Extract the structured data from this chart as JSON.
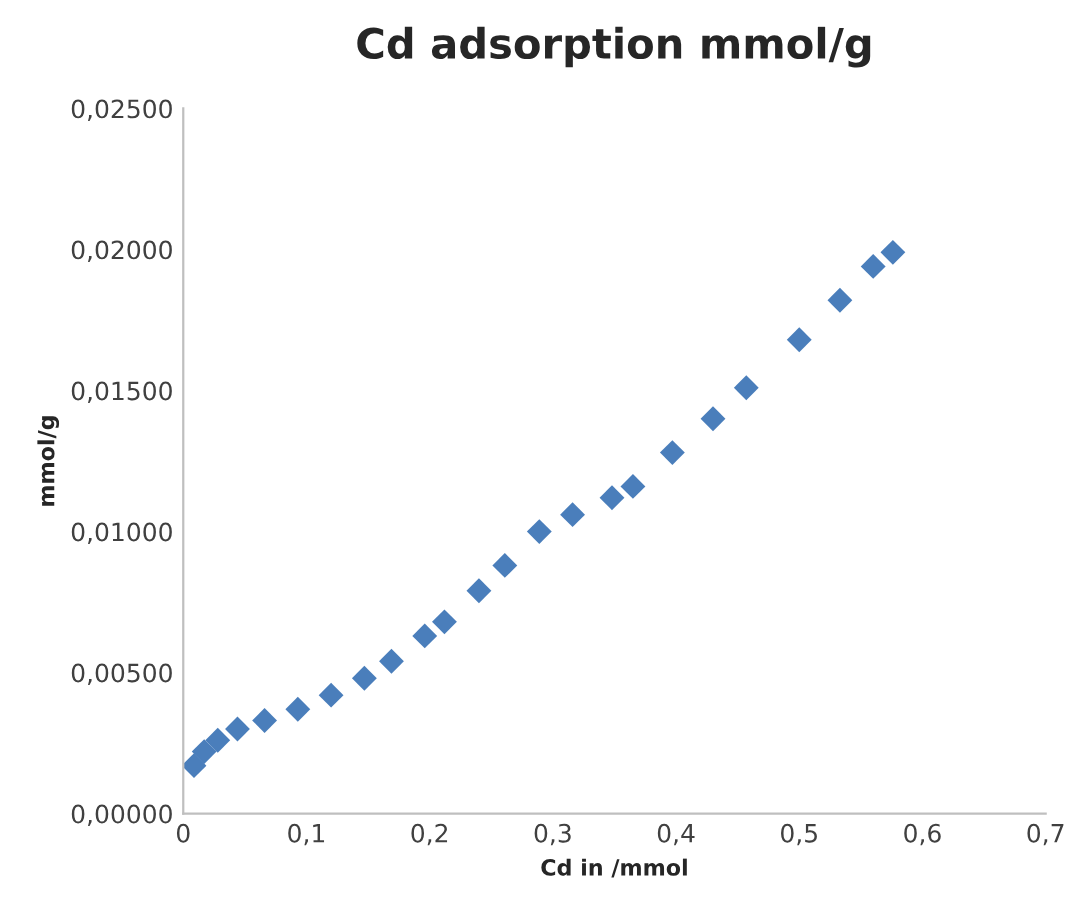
{
  "chart_data": {
    "type": "scatter",
    "title": "Cd adsorption mmol/g",
    "xlabel": "Cd in /mmol",
    "ylabel": "mmol/g",
    "marker": "diamond",
    "grid": false,
    "legend": false,
    "series": [
      {
        "color": "#4a7ebb",
        "x": [
          0.0087,
          0.017,
          0.028,
          0.044,
          0.066,
          0.093,
          0.12,
          0.147,
          0.169,
          0.196,
          0.212,
          0.24,
          0.261,
          0.289,
          0.316,
          0.348,
          0.365,
          0.397,
          0.43,
          0.457,
          0.5,
          0.533,
          0.56,
          0.576
        ],
        "values": [
          0.0017,
          0.0022,
          0.0026,
          0.003,
          0.0033,
          0.0037,
          0.0042,
          0.0048,
          0.0054,
          0.0063,
          0.0068,
          0.0079,
          0.0088,
          0.01,
          0.0106,
          0.0112,
          0.0116,
          0.0128,
          0.014,
          0.0151,
          0.0168,
          0.0182,
          0.0194,
          0.0199
        ]
      }
    ],
    "xlim": [
      0,
      0.7
    ],
    "ylim": [
      0,
      0.025
    ],
    "xticks": [
      0,
      {
        "value": 0.1,
        "label": "0,1"
      },
      {
        "value": 0.2,
        "label": "0,2"
      },
      {
        "value": 0.3,
        "label": "0,3"
      },
      {
        "value": 0.4,
        "label": "0,4"
      },
      {
        "value": 0.5,
        "label": "0,5"
      },
      {
        "value": 0.6,
        "label": "0,6"
      },
      {
        "value": 0.7,
        "label": "0,7"
      }
    ],
    "yticks": [
      {
        "value": 0,
        "label": "0,00000"
      },
      {
        "value": 0.005,
        "label": "0,00500"
      },
      {
        "value": 0.01,
        "label": "0,01000"
      },
      {
        "value": 0.015,
        "label": "0,01500"
      },
      {
        "value": 0.02,
        "label": "0,02000"
      },
      {
        "value": 0.025,
        "label": "0,02500"
      }
    ]
  }
}
